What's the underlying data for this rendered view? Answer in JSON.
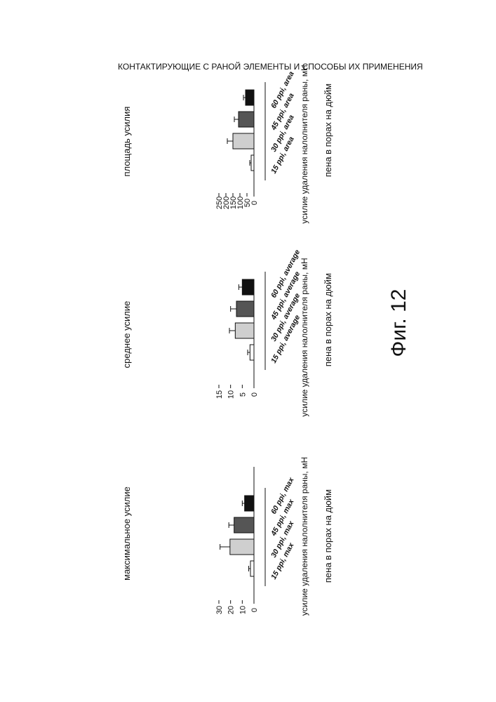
{
  "header": "КОНТАКТИРУЮЩИЕ С РАНОЙ ЭЛЕМЕНТЫ И СПОСОБЫ ИХ ПРИМЕНЕНИЯ",
  "figure_label": "Фиг. 12",
  "chart_data": [
    {
      "type": "bar",
      "title": "максимальное усилие",
      "ylabel": "усилие удаления налолнителя раны, мН",
      "xlabel": "пена в порах на дюйм",
      "ylim": [
        0,
        30
      ],
      "yticks": [
        0,
        10,
        20,
        30
      ],
      "categories": [
        "15 ppi, max",
        "30 ppi, max",
        "45 ppi, max",
        "60 ppi, max"
      ],
      "values": [
        3,
        20.5,
        17,
        8
      ],
      "errors": [
        1.5,
        8.5,
        4.5,
        2
      ],
      "colors": [
        "#ffffff",
        "#cfcfcf",
        "#555555",
        "#111111"
      ]
    },
    {
      "type": "bar",
      "title": "среднее усилие",
      "ylabel": "усилие удаления налолнителя раны, мН",
      "xlabel": "пена в порах на дюйм",
      "ylim": [
        0,
        15
      ],
      "yticks": [
        0,
        5,
        10,
        15
      ],
      "categories": [
        "15 ppi, average",
        "30 ppi, average",
        "45 ppi, average",
        "60 ppi, average"
      ],
      "values": [
        1.7,
        8,
        7.5,
        5
      ],
      "errors": [
        1,
        2.5,
        2.5,
        1.5
      ],
      "colors": [
        "#ffffff",
        "#cfcfcf",
        "#555555",
        "#111111"
      ]
    },
    {
      "type": "bar",
      "title": "площадь усилия",
      "ylabel": "усилие удаления налолнителя раны, мН",
      "xlabel": "пена в порах на дюйм",
      "ylim": [
        0,
        250
      ],
      "yticks": [
        0,
        50,
        100,
        150,
        200,
        250
      ],
      "categories": [
        "15 ppi, area",
        "30 ppi, area",
        "45 ppi, area",
        "60 ppi, area"
      ],
      "values": [
        20,
        150,
        110,
        60
      ],
      "errors": [
        10,
        40,
        30,
        15
      ],
      "colors": [
        "#ffffff",
        "#cfcfcf",
        "#555555",
        "#111111"
      ]
    }
  ]
}
